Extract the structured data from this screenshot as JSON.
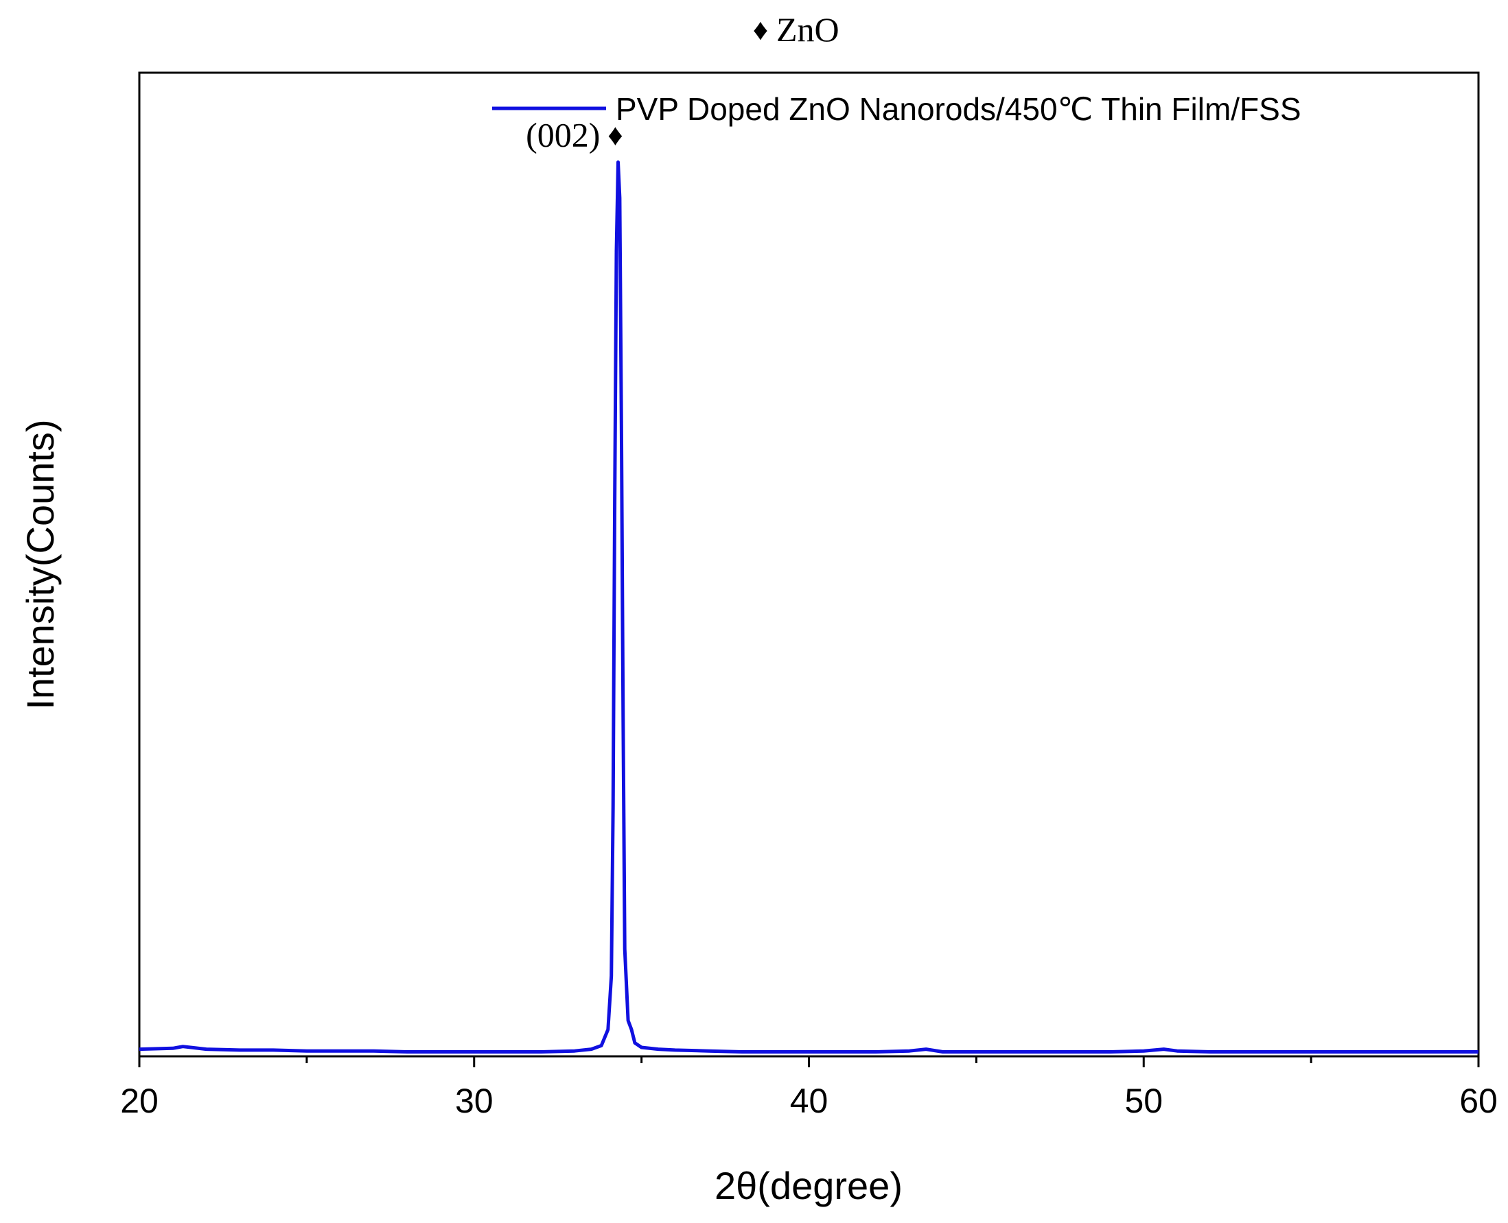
{
  "chart_data": {
    "type": "line",
    "title": "",
    "phase_legend": {
      "marker": "♦",
      "label": "ZnO"
    },
    "xlabel": "2θ(degree)",
    "ylabel": "Intensity(Counts)",
    "xlim": [
      20,
      60
    ],
    "ylim": [
      0,
      1.1
    ],
    "x_ticks": [
      20,
      30,
      40,
      50,
      60
    ],
    "x_minor_ticks": [
      25,
      35,
      45,
      55
    ],
    "y_tick_labels": false,
    "grid": false,
    "legend_position": "top-right",
    "colors": {
      "series": "#1010e0",
      "axes": "#000000"
    },
    "series": [
      {
        "name": "PVP Doped ZnO Nanorods/450℃ Thin Film/FSS",
        "x": [
          20.0,
          21.0,
          21.3,
          22.0,
          23.0,
          24.0,
          25.0,
          26.0,
          27.0,
          28.0,
          29.0,
          30.0,
          31.0,
          32.0,
          33.0,
          33.5,
          33.8,
          34.0,
          34.1,
          34.15,
          34.2,
          34.25,
          34.3,
          34.35,
          34.4,
          34.45,
          34.5,
          34.6,
          34.7,
          34.8,
          35.0,
          35.5,
          36.0,
          37.0,
          38.0,
          39.0,
          40.0,
          41.0,
          42.0,
          43.0,
          43.5,
          44.0,
          45.0,
          46.0,
          47.0,
          48.0,
          49.0,
          50.0,
          50.6,
          51.0,
          52.0,
          53.0,
          54.0,
          55.0,
          56.0,
          57.0,
          58.0,
          59.0,
          60.0
        ],
        "y": [
          0.008,
          0.009,
          0.011,
          0.008,
          0.007,
          0.007,
          0.006,
          0.006,
          0.006,
          0.005,
          0.005,
          0.005,
          0.005,
          0.005,
          0.006,
          0.008,
          0.012,
          0.03,
          0.09,
          0.28,
          0.62,
          0.9,
          1.0,
          0.96,
          0.7,
          0.38,
          0.12,
          0.04,
          0.03,
          0.015,
          0.01,
          0.008,
          0.007,
          0.006,
          0.005,
          0.005,
          0.005,
          0.005,
          0.005,
          0.006,
          0.008,
          0.005,
          0.005,
          0.005,
          0.005,
          0.005,
          0.005,
          0.006,
          0.008,
          0.006,
          0.005,
          0.005,
          0.005,
          0.005,
          0.005,
          0.005,
          0.005,
          0.005,
          0.005
        ]
      }
    ],
    "annotations": [
      {
        "text": "(002)",
        "marker": "♦",
        "x": 34.3,
        "y": 1.03
      }
    ]
  }
}
